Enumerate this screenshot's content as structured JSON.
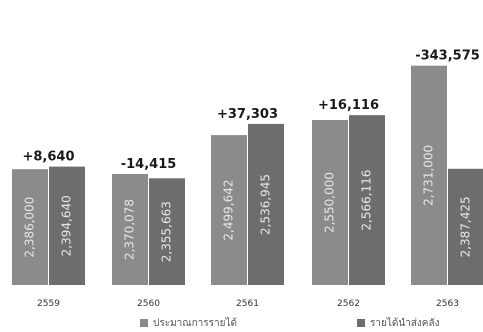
{
  "chart_data": {
    "type": "bar",
    "categories": [
      "2559",
      "2560",
      "2561",
      "2562",
      "2563"
    ],
    "series": [
      {
        "name": "ประมาณการรายได้",
        "values": [
          2386000,
          2370078,
          2499642,
          2550000,
          2731000
        ],
        "labels": [
          "2,386,000",
          "2,370,078",
          "2,499,642",
          "2,550,000",
          "2,731,000"
        ],
        "color": "#8b8b8b"
      },
      {
        "name": "รายได้นำส่งคลัง",
        "values": [
          2394640,
          2355663,
          2536945,
          2566116,
          2387425
        ],
        "labels": [
          "2,394,640",
          "2,355,663",
          "2,536,945",
          "2,566,116",
          "2,387,425"
        ],
        "color": "#6d6d6d"
      }
    ],
    "differences": [
      "+8,640",
      "-14,415",
      "+37,303",
      "+16,116",
      "-343,575"
    ],
    "ylim": [
      2000000,
      2750000
    ],
    "grid": false,
    "legend_position": "bottom"
  }
}
